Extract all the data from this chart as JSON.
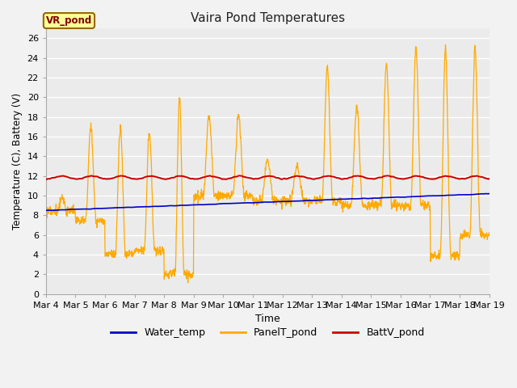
{
  "title": "Vaira Pond Temperatures",
  "xlabel": "Time",
  "ylabel": "Temperature (C), Battery (V)",
  "ylim": [
    0,
    27
  ],
  "yticks": [
    0,
    2,
    4,
    6,
    8,
    10,
    12,
    14,
    16,
    18,
    20,
    22,
    24,
    26
  ],
  "x_labels": [
    "Mar 4",
    "Mar 5",
    "Mar 6",
    "Mar 7",
    "Mar 8",
    "Mar 9",
    "Mar 10",
    "Mar 11",
    "Mar 12",
    "Mar 13",
    "Mar 14",
    "Mar 15",
    "Mar 16",
    "Mar 17",
    "Mar 18",
    "Mar 19"
  ],
  "background_color": "#ebebeb",
  "water_temp_color": "#0000cc",
  "panel_temp_color": "#ffaa00",
  "batt_color": "#cc0000",
  "annotation_text": "VR_pond",
  "annotation_bg": "#ffff99",
  "annotation_border": "#996600",
  "annotation_text_color": "#800000",
  "fig_bg": "#f2f2f2"
}
